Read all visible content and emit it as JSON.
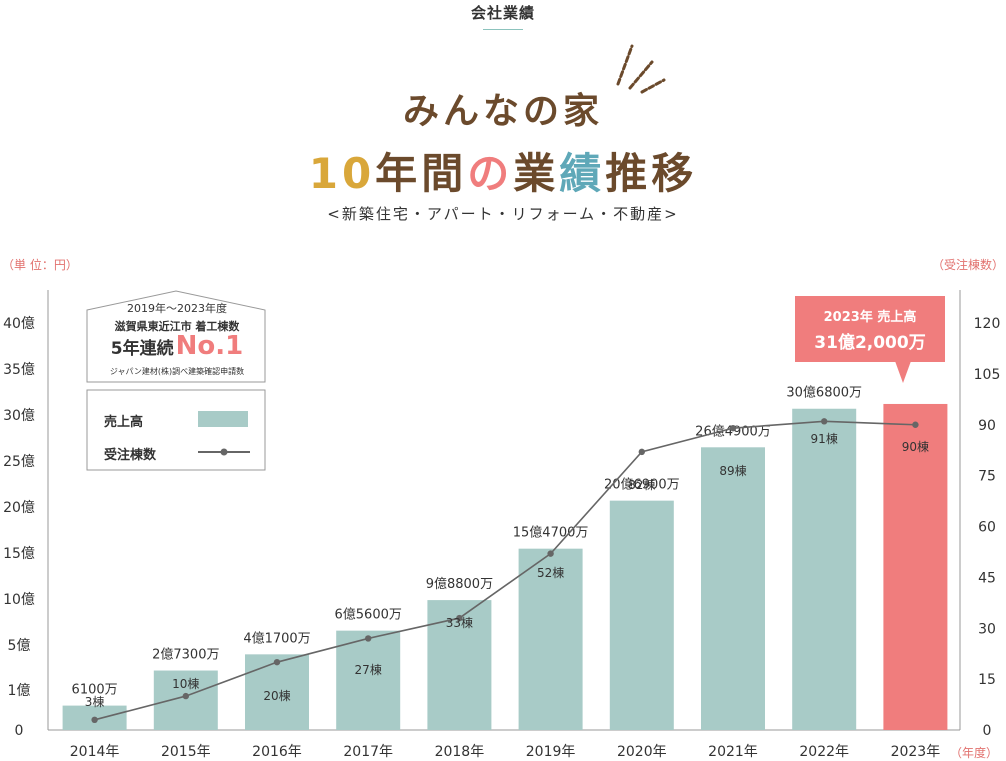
{
  "header": {
    "section_label": "会社業績",
    "title_line1": "みんなの家",
    "title_line2_chars": [
      {
        "char": "1",
        "color": "#d9a73a"
      },
      {
        "char": "0",
        "color": "#d9a73a"
      },
      {
        "char": "年",
        "color": "#6b4a2c"
      },
      {
        "char": "間",
        "color": "#6b4a2c"
      },
      {
        "char": "の",
        "color": "#f07d7d"
      },
      {
        "char": "業",
        "color": "#6b4a2c"
      },
      {
        "char": "績",
        "color": "#5fa8b8"
      },
      {
        "char": "推",
        "color": "#6b4a2c"
      },
      {
        "char": "移",
        "color": "#6b4a2c"
      }
    ],
    "subtitle": "<新築住宅・アパート・リフォーム・不動産>"
  },
  "units": {
    "left": "（単 位：円）",
    "right": "（受注棟数）",
    "bottom": "（年度）"
  },
  "ranking": {
    "period": "2019年～2023年度",
    "region": "滋賀県東近江市 着工棟数",
    "main": "5年連続",
    "no1": "No.1",
    "source": "ジャパン建材(株)調べ建築確認申請数"
  },
  "legend": {
    "sales": "売上高",
    "orders": "受注棟数"
  },
  "callout": {
    "line1": "2023年 売上高",
    "line2": "31億2,000万"
  },
  "chart_data": {
    "type": "bar",
    "categories": [
      "2014年",
      "2015年",
      "2016年",
      "2017年",
      "2018年",
      "2019年",
      "2020年",
      "2021年",
      "2022年",
      "2023年"
    ],
    "series": [
      {
        "name": "売上高",
        "type": "bar",
        "axis": "left",
        "values": [
          61000000,
          273000000,
          417000000,
          656000000,
          988000000,
          1547000000,
          2069000000,
          2649000000,
          3068000000,
          3120000000
        ],
        "labels": [
          "6100万",
          "2億7300万",
          "4億1700万",
          "6億5600万",
          "9億8800万",
          "15億4700万",
          "20億6900万",
          "26億4900万",
          "30億6800万",
          ""
        ],
        "color": "#a8cbc7",
        "highlight_color": "#f07d7d",
        "highlight_index": 9
      },
      {
        "name": "受注棟数",
        "type": "line",
        "axis": "right",
        "values": [
          3,
          10,
          20,
          27,
          33,
          52,
          82,
          89,
          91,
          90
        ],
        "labels": [
          "3棟",
          "10棟",
          "20棟",
          "27棟",
          "33棟",
          "52棟",
          "82棟",
          "89棟",
          "91棟",
          "90棟"
        ],
        "color": "#666666"
      }
    ],
    "y_left": {
      "ticks": [
        "0",
        "1億",
        "5億",
        "10億",
        "15億",
        "20億",
        "25億",
        "30億",
        "35億",
        "40億"
      ]
    },
    "y_right": {
      "range": [
        0,
        120
      ],
      "ticks": [
        "0",
        "15",
        "30",
        "45",
        "60",
        "75",
        "90",
        "105",
        "120"
      ]
    },
    "grid": false
  }
}
